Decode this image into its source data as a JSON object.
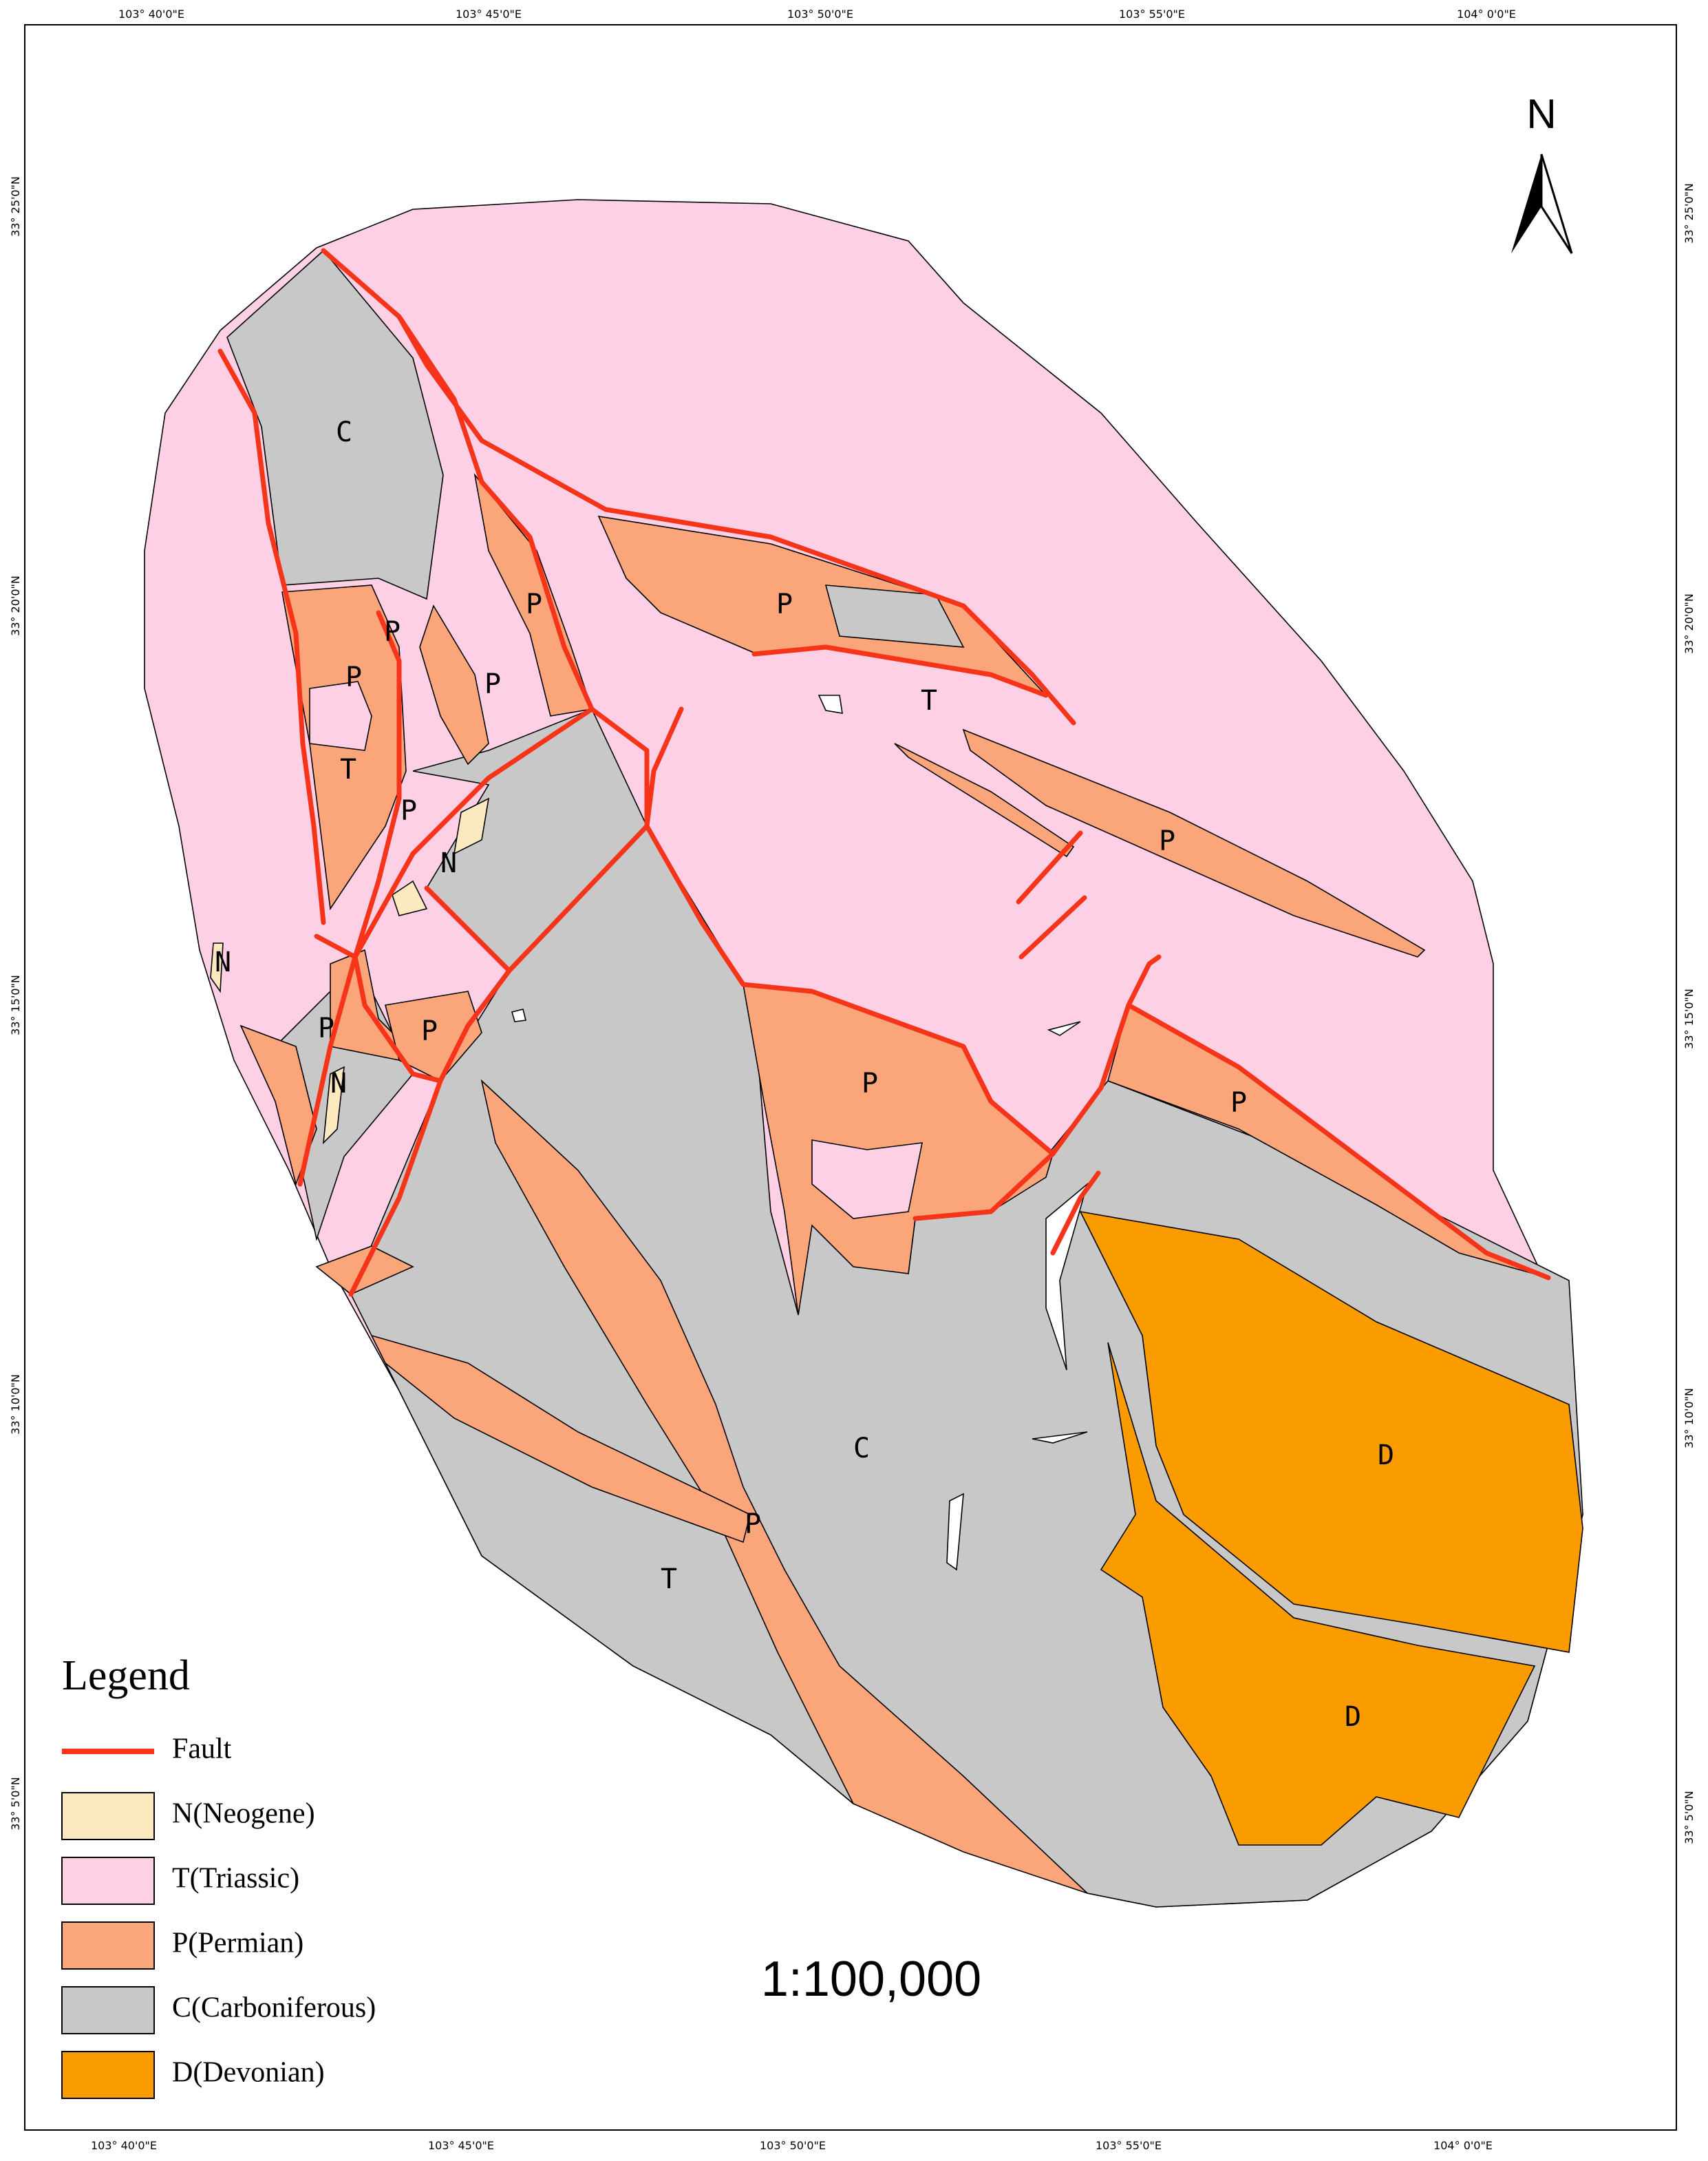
{
  "frame": {
    "top_labels": [
      "103° 40'0\"E",
      "103° 45'0\"E",
      "103° 50'0\"E",
      "103° 55'0\"E",
      "104° 0'0\"E"
    ],
    "bottom_labels": [
      "103° 40'0\"E",
      "103° 45'0\"E",
      "103° 50'0\"E",
      "103° 55'0\"E",
      "104° 0'0\"E"
    ],
    "left_labels": [
      "33° 25'0\"N",
      "33° 20'0\"N",
      "33° 15'0\"N",
      "33° 10'0\"N",
      "33° 5'0\"N"
    ],
    "right_labels": [
      "33° 25'0\"N",
      "33° 20'0\"N",
      "33° 15'0\"N",
      "33° 10'0\"N",
      "33° 5'0\"N"
    ]
  },
  "north": "N",
  "map_labels": [
    "C",
    "P",
    "P",
    "P",
    "P",
    "P",
    "T",
    "P",
    "N",
    "N",
    "P",
    "P",
    "N",
    "P",
    "T",
    "P",
    "P",
    "C",
    "P",
    "T",
    "D",
    "D"
  ],
  "legend": {
    "title": "Legend",
    "items": [
      {
        "label": "Fault",
        "color": "#f5341a"
      },
      {
        "label": "N(Neogene)",
        "color": "#fde9bf"
      },
      {
        "label": "T(Triassic)",
        "color": "#fdd0e6"
      },
      {
        "label": "P(Permian)",
        "color": "#fba57b"
      },
      {
        "label": "C(Carboniferous)",
        "color": "#c8c8c8"
      },
      {
        "label": "D(Devonian)",
        "color": "#fa9b00"
      }
    ]
  },
  "scale": "1:100,000"
}
